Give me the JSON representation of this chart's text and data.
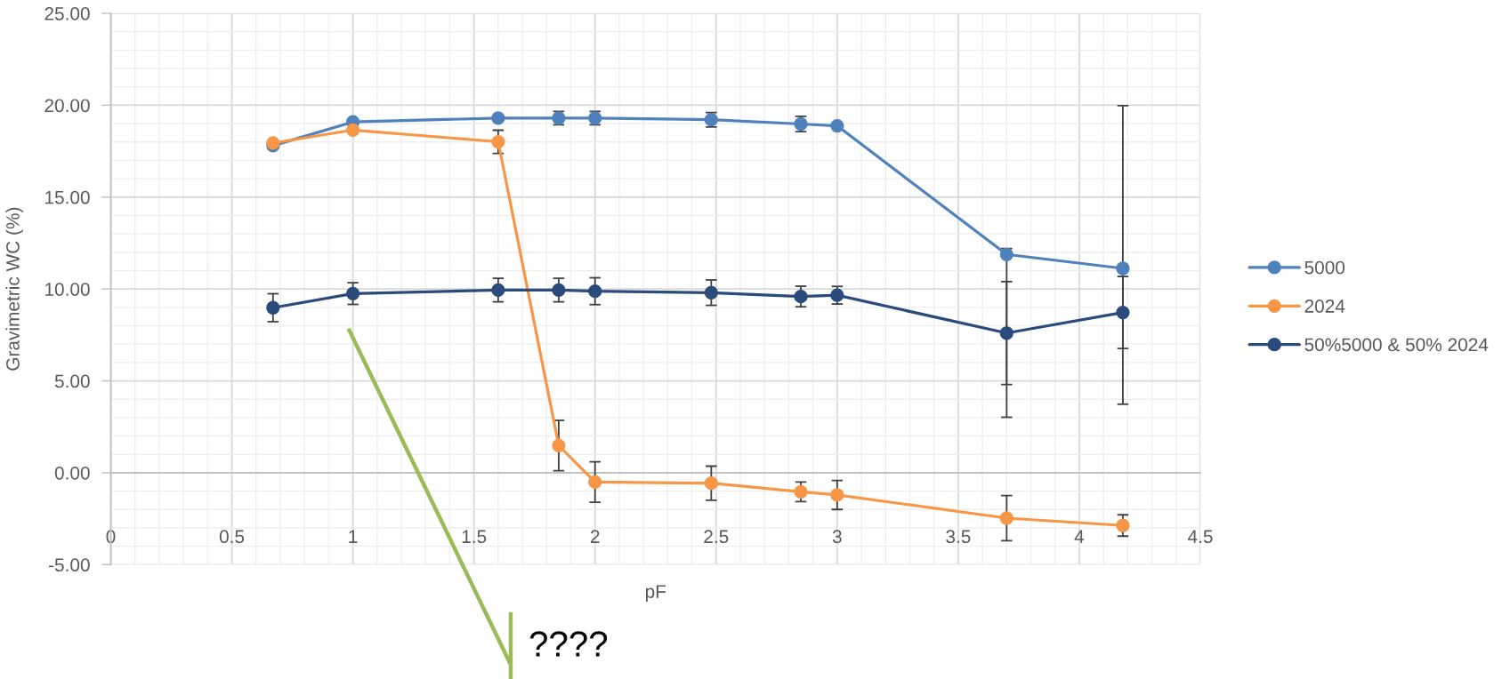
{
  "chart_data": {
    "type": "line",
    "xlabel": "pF",
    "ylabel": "Gravimetric WC (%)",
    "x": [
      0.67,
      1,
      1.6,
      1.85,
      2,
      2.48,
      2.85,
      3,
      3.7,
      4.18
    ],
    "series": [
      {
        "name": "5000",
        "color": "#4f81bd",
        "values": [
          17.8,
          19.09,
          19.3,
          19.3,
          19.3,
          19.21,
          18.98,
          18.88,
          11.88,
          11.12
        ],
        "errors": [
          null,
          null,
          null,
          0.36,
          0.36,
          0.39,
          0.42,
          null,
          [
            3.02,
            12.2
          ],
          [
            3.73,
            19.98
          ]
        ]
      },
      {
        "name": "2024",
        "color": "#f79646",
        "values": [
          17.94,
          18.65,
          18.01,
          1.48,
          -0.51,
          -0.57,
          -1.04,
          -1.21,
          -2.47,
          -2.87
        ],
        "errors": [
          null,
          null,
          0.63,
          1.37,
          1.1,
          0.93,
          0.53,
          0.79,
          1.23,
          0.58
        ]
      },
      {
        "name": "50%5000 & 50% 2024",
        "color": "#2a4b7c",
        "values": [
          8.98,
          9.75,
          9.94,
          9.94,
          9.88,
          9.8,
          9.59,
          9.66,
          7.6,
          8.72
        ],
        "errors": [
          0.76,
          0.59,
          0.64,
          0.64,
          0.73,
          0.69,
          0.56,
          0.48,
          2.8,
          1.96
        ]
      }
    ],
    "xlim": [
      0,
      4.5
    ],
    "xticks": [
      0,
      0.5,
      1,
      1.5,
      2,
      2.5,
      3,
      3.5,
      4,
      4.5
    ],
    "ylim": [
      -5,
      25
    ],
    "yticks": [
      {
        "value": -5,
        "label": "-5.00"
      },
      {
        "value": 0,
        "label": "0.00"
      },
      {
        "value": 5,
        "label": "5.00"
      },
      {
        "value": 10,
        "label": "10.00"
      },
      {
        "value": 15,
        "label": "15.00"
      },
      {
        "value": 20,
        "label": "20.00"
      },
      {
        "value": 25,
        "label": "25.00"
      }
    ],
    "grid": true,
    "legend": "right",
    "marker": "circle",
    "line_style": "solid",
    "annotations": [
      "????"
    ]
  }
}
